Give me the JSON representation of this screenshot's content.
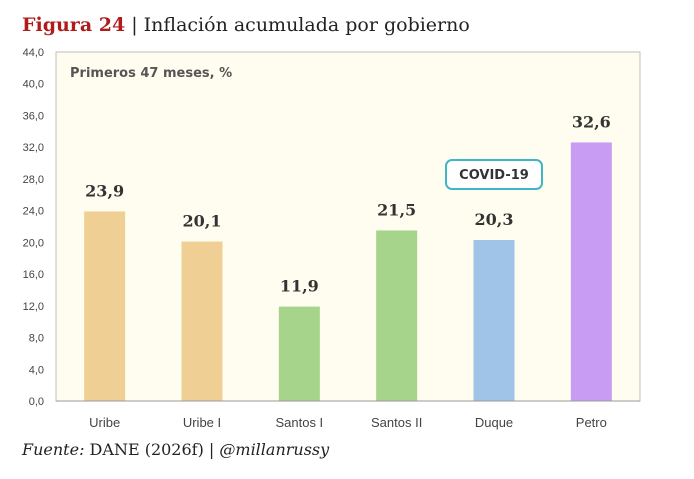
{
  "header": {
    "figure": "Figura 24",
    "separator": " | ",
    "title": "Inflación acumulada por gobierno"
  },
  "footer": {
    "source_label": "Fuente:",
    "source_text": " DANE (2026f) | ",
    "handle": "@millanrussy"
  },
  "chart_data": {
    "type": "bar",
    "subtitle": "Primeros 47 meses, %",
    "categories": [
      "Uribe",
      "Uribe I",
      "Santos I",
      "Santos II",
      "Duque",
      "Petro"
    ],
    "values": [
      23.9,
      20.1,
      11.9,
      21.5,
      20.3,
      32.6
    ],
    "value_labels": [
      "23,9",
      "20,1",
      "11,9",
      "21,5",
      "20,3",
      "32,6"
    ],
    "colors": [
      "#f0cf94",
      "#f0cf94",
      "#a5d48a",
      "#a5d48a",
      "#9fc4e8",
      "#c99cf3"
    ],
    "ylim": [
      0,
      44
    ],
    "yticks": [
      0,
      4,
      8,
      12,
      16,
      20,
      24,
      28,
      32,
      36,
      40,
      44
    ],
    "ytick_labels": [
      "0,0",
      "4,0",
      "8,0",
      "12,0",
      "16,0",
      "20,0",
      "24,0",
      "28,0",
      "32,0",
      "36,0",
      "40,0",
      "44,0"
    ],
    "grid": false,
    "annotation": {
      "text": "COVID-19",
      "category": "Duque",
      "border_color": "#3fb6c6"
    },
    "background_color": "#fefdef",
    "axis_color": "#bfbfbf"
  }
}
